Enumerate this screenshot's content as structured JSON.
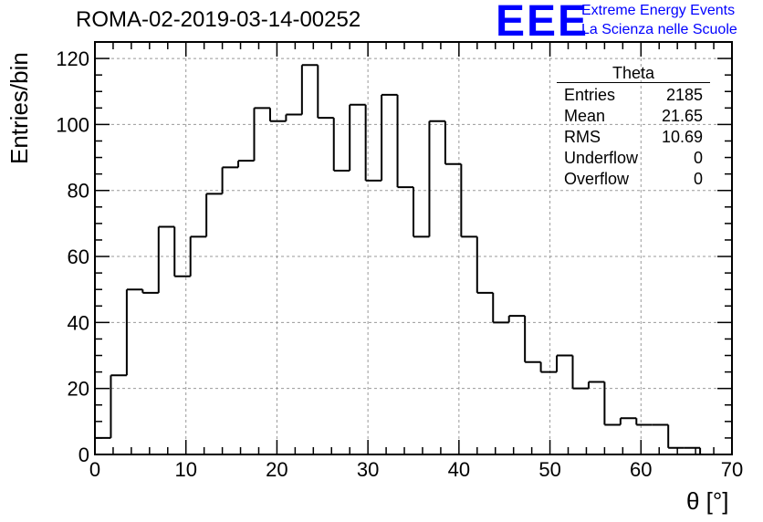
{
  "chart_data": {
    "type": "bar",
    "title": "ROMA-02-2019-03-14-00252",
    "xlabel": "θ [°]",
    "ylabel": "Entries/bin",
    "xlim": [
      0,
      70
    ],
    "ylim": [
      0,
      125
    ],
    "grid": true,
    "bin_width": 1.75,
    "x_ticks": [
      "0",
      "10",
      "20",
      "30",
      "40",
      "50",
      "60",
      "70"
    ],
    "y_ticks": [
      "0",
      "20",
      "40",
      "60",
      "80",
      "100",
      "120"
    ],
    "values": [
      5,
      24,
      50,
      49,
      69,
      54,
      66,
      79,
      87,
      89,
      105,
      101,
      103,
      118,
      102,
      86,
      106,
      83,
      109,
      81,
      66,
      101,
      88,
      66,
      49,
      40,
      42,
      28,
      25,
      30,
      20,
      22,
      9,
      11,
      9,
      9,
      2,
      2,
      0,
      0
    ]
  },
  "stats_box": {
    "title": "Theta",
    "rows": [
      {
        "label": "Entries",
        "value": "2185"
      },
      {
        "label": "Mean",
        "value": "21.65"
      },
      {
        "label": "RMS",
        "value": "10.69"
      },
      {
        "label": "Underflow",
        "value": "0"
      },
      {
        "label": "Overflow",
        "value": "0"
      }
    ]
  },
  "logo": {
    "mark": "EEE",
    "line1": "Extreme Energy Events",
    "line2": "La Scienza nelle Scuole",
    "color": "#0000ff"
  }
}
